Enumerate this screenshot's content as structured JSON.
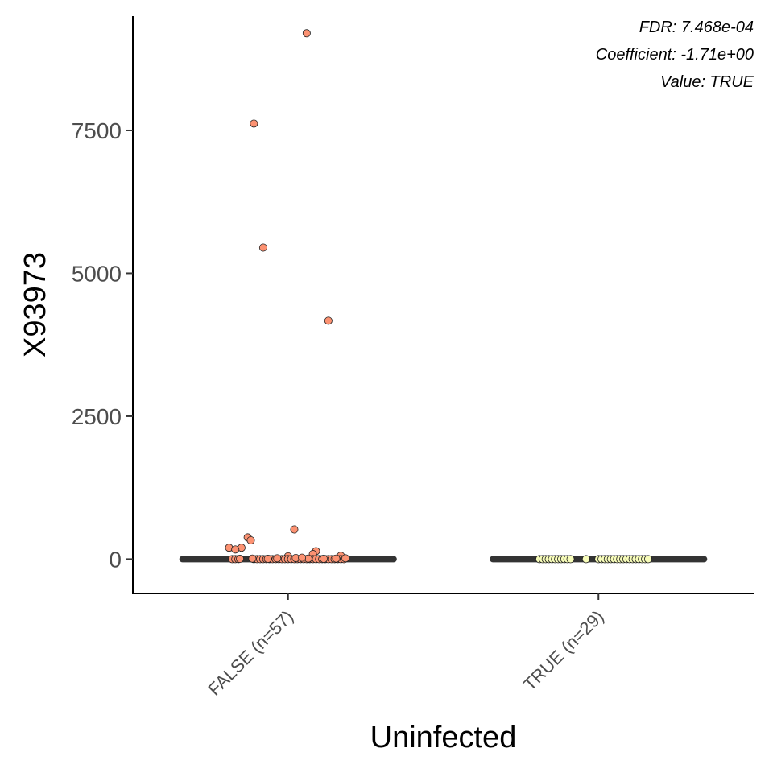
{
  "chart_data": {
    "type": "scatter",
    "title": "",
    "xlabel": "Uninfected",
    "ylabel": "X93973",
    "categories": [
      "FALSE (n=57)",
      "TRUE (n=29)"
    ],
    "ylim": [
      -600,
      9500
    ],
    "yticks": [
      0,
      2500,
      5000,
      7500
    ],
    "grid": false,
    "annotations": [
      "FDR: 7.468e-04",
      "Coefficient: -1.71e+00",
      "Value: TRUE"
    ],
    "medians": [
      0,
      0
    ],
    "series": [
      {
        "category": "FALSE (n=57)",
        "color": "#fc9272",
        "points": [
          {
            "x": 0.06,
            "y": 9200
          },
          {
            "x": -0.11,
            "y": 7620
          },
          {
            "x": -0.08,
            "y": 5450
          },
          {
            "x": 0.13,
            "y": 4170
          },
          {
            "x": 0.02,
            "y": 520
          },
          {
            "x": -0.13,
            "y": 380
          },
          {
            "x": -0.12,
            "y": 330
          },
          {
            "x": -0.19,
            "y": 200
          },
          {
            "x": -0.15,
            "y": 200
          },
          {
            "x": -0.17,
            "y": 170
          },
          {
            "x": 0.09,
            "y": 140
          },
          {
            "x": 0.08,
            "y": 90
          },
          {
            "x": 0.17,
            "y": 60
          },
          {
            "x": 0.0,
            "y": 50
          },
          {
            "x": -0.18,
            "y": 0
          },
          {
            "x": -0.17,
            "y": 0
          },
          {
            "x": -0.16,
            "y": 0
          },
          {
            "x": -0.11,
            "y": 0
          },
          {
            "x": -0.1,
            "y": 0
          },
          {
            "x": -0.09,
            "y": 0
          },
          {
            "x": -0.08,
            "y": 0
          },
          {
            "x": -0.07,
            "y": 0
          },
          {
            "x": -0.06,
            "y": 0
          },
          {
            "x": -0.05,
            "y": 0
          },
          {
            "x": -0.04,
            "y": 0
          },
          {
            "x": -0.03,
            "y": 0
          },
          {
            "x": -0.02,
            "y": 0
          },
          {
            "x": -0.01,
            "y": 0
          },
          {
            "x": 0.0,
            "y": 0
          },
          {
            "x": 0.01,
            "y": 0
          },
          {
            "x": 0.02,
            "y": 0
          },
          {
            "x": 0.03,
            "y": 0
          },
          {
            "x": 0.04,
            "y": 0
          },
          {
            "x": 0.05,
            "y": 0
          },
          {
            "x": 0.06,
            "y": 0
          },
          {
            "x": 0.07,
            "y": 0
          },
          {
            "x": 0.08,
            "y": 0
          },
          {
            "x": 0.09,
            "y": 0
          },
          {
            "x": 0.1,
            "y": 0
          },
          {
            "x": 0.11,
            "y": 0
          },
          {
            "x": 0.12,
            "y": 0
          },
          {
            "x": 0.13,
            "y": 0
          },
          {
            "x": 0.14,
            "y": 0
          },
          {
            "x": 0.15,
            "y": 0
          },
          {
            "x": 0.16,
            "y": 0
          },
          {
            "x": 0.17,
            "y": 0
          },
          {
            "x": 0.18,
            "y": 0
          },
          {
            "x": -0.115,
            "y": 10
          },
          {
            "x": -0.035,
            "y": 15
          },
          {
            "x": 0.025,
            "y": 20
          },
          {
            "x": 0.065,
            "y": 10
          },
          {
            "x": 0.115,
            "y": 5
          },
          {
            "x": 0.155,
            "y": 10
          },
          {
            "x": -0.065,
            "y": 5
          },
          {
            "x": 0.045,
            "y": 25
          },
          {
            "x": -0.155,
            "y": 5
          },
          {
            "x": 0.185,
            "y": 15
          }
        ]
      },
      {
        "category": "TRUE (n=29)",
        "color": "#f7fcb9",
        "points": [
          {
            "x": -0.19,
            "y": 0
          },
          {
            "x": -0.18,
            "y": 0
          },
          {
            "x": -0.17,
            "y": 0
          },
          {
            "x": -0.16,
            "y": 0
          },
          {
            "x": -0.15,
            "y": 0
          },
          {
            "x": -0.14,
            "y": 0
          },
          {
            "x": -0.13,
            "y": 0
          },
          {
            "x": -0.12,
            "y": 0
          },
          {
            "x": -0.11,
            "y": 0
          },
          {
            "x": -0.1,
            "y": 0
          },
          {
            "x": -0.09,
            "y": 0
          },
          {
            "x": -0.04,
            "y": 0
          },
          {
            "x": 0.0,
            "y": 0
          },
          {
            "x": 0.01,
            "y": 0
          },
          {
            "x": 0.02,
            "y": 0
          },
          {
            "x": 0.03,
            "y": 0
          },
          {
            "x": 0.04,
            "y": 0
          },
          {
            "x": 0.05,
            "y": 0
          },
          {
            "x": 0.06,
            "y": 0
          },
          {
            "x": 0.07,
            "y": 0
          },
          {
            "x": 0.08,
            "y": 0
          },
          {
            "x": 0.09,
            "y": 0
          },
          {
            "x": 0.1,
            "y": 0
          },
          {
            "x": 0.11,
            "y": 0
          },
          {
            "x": 0.12,
            "y": 0
          },
          {
            "x": 0.13,
            "y": 0
          },
          {
            "x": 0.14,
            "y": 0
          },
          {
            "x": 0.15,
            "y": 0
          },
          {
            "x": 0.16,
            "y": 0
          }
        ]
      }
    ]
  }
}
